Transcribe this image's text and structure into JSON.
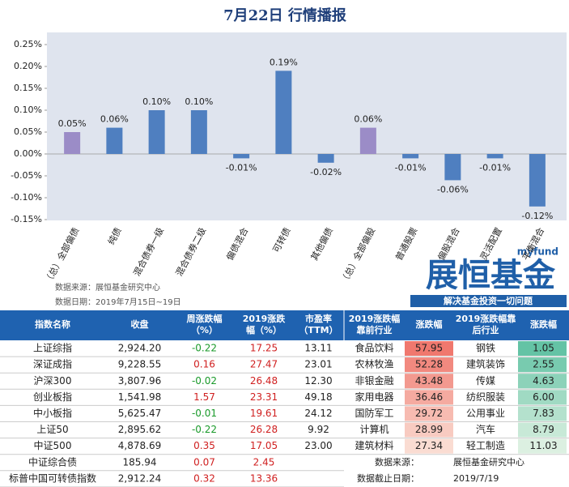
{
  "title": "7月22日 行情播报",
  "chart_data": {
    "type": "bar",
    "categories": [
      "（总）全部偏债",
      "纯债",
      "混合债券一级",
      "混合债券二级",
      "偏债混合",
      "可转债",
      "其他偏债",
      "（总）全部偏股",
      "普通股票",
      "偏股混合",
      "灵活配置",
      "平衡混合"
    ],
    "values": [
      0.05,
      0.06,
      0.1,
      0.1,
      -0.01,
      0.19,
      -0.02,
      0.06,
      -0.01,
      -0.06,
      -0.01,
      -0.12
    ],
    "value_labels": [
      "0.05%",
      "0.06%",
      "0.10%",
      "0.10%",
      "-0.01%",
      "0.19%",
      "-0.02%",
      "0.06%",
      "-0.01%",
      "-0.06%",
      "-0.01%",
      "-0.12%"
    ],
    "colors": [
      "#9b8cc7",
      "#4f7fc0",
      "#4f7fc0",
      "#4f7fc0",
      "#4f7fc0",
      "#4f7fc0",
      "#4f7fc0",
      "#9b8cc7",
      "#4f7fc0",
      "#4f7fc0",
      "#4f7fc0",
      "#4f7fc0"
    ],
    "ylim": [
      -0.15,
      0.25
    ],
    "yticks": [
      {
        "value": -0.15,
        "label": "-0.15%"
      },
      {
        "value": -0.1,
        "label": "-0.10%"
      },
      {
        "value": -0.05,
        "label": "-0.05%"
      },
      {
        "value": 0,
        "label": "0.00%"
      },
      {
        "value": 0.05,
        "label": "0.05%"
      },
      {
        "value": 0.1,
        "label": "0.10%"
      },
      {
        "value": 0.15,
        "label": "0.15%"
      },
      {
        "value": 0.2,
        "label": "0.20%"
      },
      {
        "value": 0.25,
        "label": "0.25%"
      }
    ],
    "notes": [
      "数据来源：展恒基金研究中心",
      "数据日期：2019年7月15日~19日"
    ]
  },
  "logo": {
    "small": "myfund",
    "big": "展恒基金",
    "slogan": "解决基金投资一切问题"
  },
  "table": {
    "header": [
      [
        "指数名称"
      ],
      [
        "收盘"
      ],
      [
        "周涨跌幅",
        "（%）"
      ],
      [
        "2019涨跌",
        "幅（%）"
      ],
      [
        "市盈率",
        "（TTM）"
      ],
      [
        "2019涨跌幅",
        "靠前行业"
      ],
      [
        "涨跌幅"
      ],
      [
        "2019涨跌幅靠",
        "后行业"
      ],
      [
        "涨跌幅"
      ]
    ],
    "rows": [
      [
        "上证综指",
        "2,924.20",
        "-0.22",
        "17.25",
        "13.11"
      ],
      [
        "深证成指",
        "9,228.55",
        "0.16",
        "27.47",
        "23.01"
      ],
      [
        "沪深300",
        "3,807.96",
        "-0.02",
        "26.48",
        "12.30"
      ],
      [
        "创业板指",
        "1,541.98",
        "1.57",
        "23.31",
        "49.18"
      ],
      [
        "中小板指",
        "5,625.47",
        "-0.01",
        "19.61",
        "24.12"
      ],
      [
        "上证50",
        "2,895.62",
        "-0.22",
        "26.28",
        "9.92"
      ],
      [
        "中证500",
        "4,878.69",
        "0.35",
        "17.05",
        "23.00"
      ],
      [
        "中证综合债",
        "185.94",
        "0.07",
        "2.45"
      ],
      [
        "标普中国可转债指数",
        "2,912.24",
        "0.32",
        "13.36"
      ]
    ],
    "industries": [
      [
        "食品饮料",
        "57.95",
        "钢铁",
        "1.05"
      ],
      [
        "农林牧渔",
        "52.28",
        "建筑装饰",
        "2.55"
      ],
      [
        "非银金融",
        "43.48",
        "传媒",
        "4.63"
      ],
      [
        "家用电器",
        "36.46",
        "纺织服装",
        "6.00"
      ],
      [
        "国防军工",
        "29.72",
        "公用事业",
        "7.83"
      ],
      [
        "计算机",
        "28.99",
        "汽车",
        "8.79"
      ],
      [
        "建筑材料",
        "27.34",
        "轻工制造",
        "11.03"
      ]
    ],
    "notes": [
      [
        "数据来源：",
        "展恒基金研究中心"
      ],
      [
        "数据截止日期：",
        "2019/7/19"
      ]
    ]
  }
}
